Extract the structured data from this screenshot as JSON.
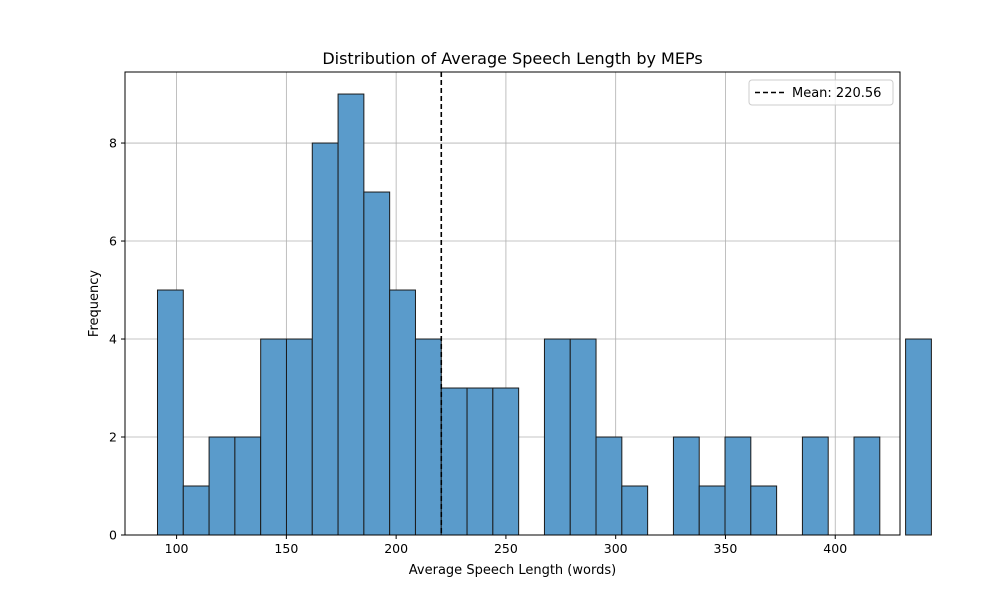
{
  "chart_data": {
    "type": "bar",
    "title": "Distribution of Average Speech Length by MEPs",
    "xlabel": "Average Speech Length (words)",
    "ylabel": "Frequency",
    "bin_start": 91.3,
    "bin_width": 11.75,
    "values": [
      5,
      1,
      2,
      2,
      4,
      4,
      8,
      9,
      7,
      5,
      4,
      3,
      3,
      3,
      0,
      4,
      4,
      2,
      1,
      0,
      2,
      1,
      2,
      1,
      0,
      2,
      0,
      2,
      0,
      4
    ],
    "xlim": [
      76.5,
      429.5
    ],
    "ylim": [
      0,
      9.45
    ],
    "xticks": [
      100,
      150,
      200,
      250,
      300,
      350,
      400
    ],
    "yticks": [
      0,
      2,
      4,
      6,
      8
    ],
    "mean": 220.56,
    "mean_label": "Mean: 220.56",
    "grid": true,
    "legend_position": "top-right",
    "colors": {
      "bar_fill": "#5a9bcb",
      "bar_edge": "#1a1a1a",
      "mean_line": "#000000",
      "grid": "#b0b0b0"
    }
  }
}
